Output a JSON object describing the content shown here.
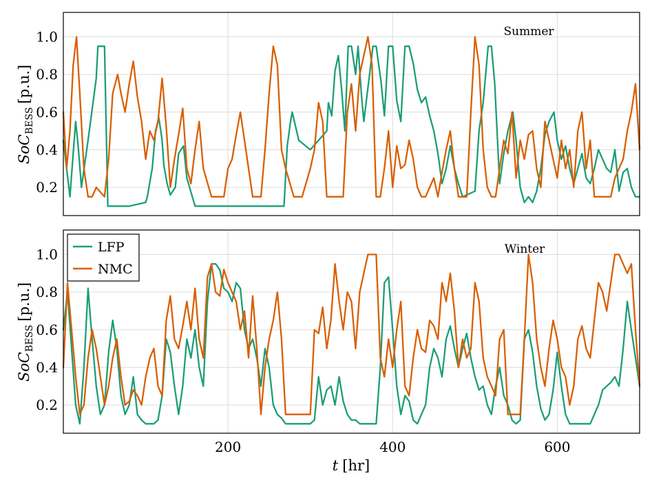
{
  "chart_data": [
    {
      "type": "line",
      "panel": "Summer",
      "ylabel_main": "SoC",
      "ylabel_sub": "BESS",
      "ylabel_unit": "[p.u.]",
      "xlim": [
        0,
        700
      ],
      "ylim": [
        0.05,
        1.13
      ],
      "yticks": [
        0.2,
        0.4,
        0.6,
        0.8,
        1.0
      ],
      "ytick_labels": [
        "0.2",
        "0.4",
        "0.6",
        "0.8",
        "1.0"
      ],
      "series": [
        {
          "name": "LFP",
          "x": [
            0,
            4,
            8,
            12,
            15,
            18,
            22,
            30,
            40,
            42,
            50,
            54,
            60,
            80,
            100,
            102,
            108,
            112,
            116,
            120,
            122,
            126,
            130,
            136,
            140,
            146,
            150,
            160,
            200,
            230,
            260,
            268,
            272,
            276,
            278,
            286,
            300,
            320,
            322,
            326,
            330,
            334,
            338,
            342,
            346,
            350,
            355,
            358,
            362,
            365,
            372,
            376,
            380,
            386,
            390,
            395,
            400,
            405,
            410,
            415,
            420,
            425,
            430,
            435,
            440,
            445,
            450,
            455,
            460,
            465,
            470,
            475,
            480,
            485,
            490,
            500,
            505,
            510,
            516,
            520,
            524,
            530,
            535,
            540,
            546,
            550,
            555,
            560,
            565,
            570,
            575,
            580,
            585,
            590,
            596,
            600,
            605,
            610,
            615,
            620,
            625,
            630,
            635,
            640,
            645,
            650,
            655,
            660,
            665,
            670,
            675,
            680,
            685,
            690,
            695,
            700
          ],
          "y": [
            0.45,
            0.3,
            0.15,
            0.38,
            0.55,
            0.42,
            0.2,
            0.45,
            0.78,
            0.95,
            0.95,
            0.1,
            0.1,
            0.1,
            0.12,
            0.15,
            0.3,
            0.5,
            0.57,
            0.45,
            0.32,
            0.22,
            0.16,
            0.2,
            0.38,
            0.42,
            0.25,
            0.1,
            0.1,
            0.1,
            0.1,
            0.1,
            0.42,
            0.55,
            0.6,
            0.45,
            0.4,
            0.5,
            0.65,
            0.58,
            0.82,
            0.9,
            0.72,
            0.5,
            0.95,
            0.95,
            0.8,
            0.95,
            0.7,
            0.55,
            0.8,
            0.95,
            0.95,
            0.76,
            0.58,
            0.95,
            0.95,
            0.66,
            0.55,
            0.95,
            0.95,
            0.86,
            0.72,
            0.65,
            0.68,
            0.58,
            0.5,
            0.38,
            0.22,
            0.3,
            0.42,
            0.3,
            0.22,
            0.15,
            0.16,
            0.18,
            0.5,
            0.65,
            0.95,
            0.95,
            0.75,
            0.22,
            0.38,
            0.5,
            0.6,
            0.45,
            0.2,
            0.12,
            0.15,
            0.12,
            0.18,
            0.3,
            0.48,
            0.55,
            0.6,
            0.45,
            0.35,
            0.42,
            0.3,
            0.22,
            0.3,
            0.38,
            0.25,
            0.22,
            0.3,
            0.4,
            0.35,
            0.3,
            0.28,
            0.4,
            0.18,
            0.28,
            0.3,
            0.2,
            0.15,
            0.15
          ]
        },
        {
          "name": "NMC",
          "x": [
            0,
            4,
            8,
            12,
            16,
            20,
            25,
            30,
            35,
            40,
            50,
            55,
            60,
            66,
            70,
            75,
            80,
            85,
            90,
            95,
            100,
            105,
            110,
            115,
            120,
            125,
            130,
            135,
            140,
            145,
            150,
            155,
            160,
            165,
            170,
            180,
            190,
            195,
            200,
            205,
            210,
            215,
            220,
            230,
            240,
            245,
            250,
            255,
            260,
            265,
            270,
            280,
            290,
            300,
            305,
            310,
            315,
            320,
            325,
            330,
            340,
            345,
            350,
            355,
            360,
            365,
            370,
            375,
            380,
            385,
            390,
            395,
            400,
            405,
            410,
            415,
            420,
            425,
            430,
            435,
            440,
            445,
            450,
            455,
            460,
            465,
            470,
            475,
            480,
            485,
            490,
            495,
            500,
            505,
            510,
            515,
            520,
            525,
            530,
            535,
            540,
            545,
            550,
            555,
            560,
            565,
            570,
            575,
            580,
            585,
            590,
            595,
            600,
            605,
            610,
            615,
            620,
            625,
            630,
            635,
            640,
            645,
            650,
            655,
            660,
            665,
            670,
            675,
            680,
            685,
            690,
            695,
            700
          ],
          "y": [
            0.6,
            0.3,
            0.5,
            0.85,
            1.0,
            0.7,
            0.3,
            0.15,
            0.15,
            0.2,
            0.15,
            0.35,
            0.7,
            0.8,
            0.7,
            0.6,
            0.75,
            0.87,
            0.68,
            0.55,
            0.35,
            0.5,
            0.45,
            0.55,
            0.78,
            0.52,
            0.2,
            0.35,
            0.48,
            0.62,
            0.3,
            0.22,
            0.4,
            0.55,
            0.3,
            0.15,
            0.15,
            0.15,
            0.3,
            0.35,
            0.48,
            0.6,
            0.45,
            0.15,
            0.15,
            0.4,
            0.7,
            0.95,
            0.85,
            0.4,
            0.3,
            0.15,
            0.15,
            0.3,
            0.4,
            0.65,
            0.55,
            0.15,
            0.15,
            0.15,
            0.15,
            0.6,
            0.75,
            0.5,
            0.8,
            0.9,
            1.0,
            0.85,
            0.15,
            0.15,
            0.3,
            0.5,
            0.2,
            0.42,
            0.3,
            0.32,
            0.45,
            0.35,
            0.2,
            0.15,
            0.15,
            0.2,
            0.25,
            0.15,
            0.28,
            0.4,
            0.5,
            0.3,
            0.15,
            0.15,
            0.15,
            0.6,
            1.0,
            0.85,
            0.4,
            0.2,
            0.15,
            0.15,
            0.3,
            0.45,
            0.38,
            0.6,
            0.25,
            0.45,
            0.35,
            0.48,
            0.5,
            0.3,
            0.2,
            0.55,
            0.45,
            0.35,
            0.25,
            0.45,
            0.3,
            0.4,
            0.2,
            0.5,
            0.6,
            0.3,
            0.45,
            0.15,
            0.15,
            0.15,
            0.15,
            0.15,
            0.25,
            0.3,
            0.35,
            0.5,
            0.6,
            0.75,
            0.4
          ]
        }
      ]
    },
    {
      "type": "line",
      "panel": "Winter",
      "xlabel_main": "t",
      "xlabel_unit": "[hr]",
      "ylabel_main": "SoC",
      "ylabel_sub": "BESS",
      "ylabel_unit": "[p.u.]",
      "xlim": [
        0,
        700
      ],
      "ylim": [
        0.05,
        1.13
      ],
      "xticks": [
        200,
        400,
        600
      ],
      "xtick_labels": [
        "200",
        "400",
        "600"
      ],
      "yticks": [
        0.2,
        0.4,
        0.6,
        0.8,
        1.0
      ],
      "ytick_labels": [
        "0.2",
        "0.4",
        "0.6",
        "0.8",
        "1.0"
      ],
      "legend": {
        "placement": "top-left",
        "entries": [
          "LFP",
          "NMC"
        ]
      },
      "series": [
        {
          "name": "LFP",
          "x": [
            0,
            5,
            10,
            15,
            20,
            25,
            30,
            35,
            40,
            45,
            50,
            55,
            60,
            65,
            70,
            75,
            80,
            85,
            90,
            95,
            100,
            105,
            110,
            115,
            120,
            125,
            130,
            135,
            140,
            145,
            150,
            155,
            160,
            165,
            170,
            175,
            180,
            185,
            190,
            195,
            200,
            205,
            210,
            215,
            220,
            225,
            230,
            235,
            240,
            245,
            250,
            255,
            260,
            265,
            270,
            280,
            290,
            300,
            305,
            310,
            315,
            320,
            325,
            330,
            335,
            340,
            345,
            350,
            355,
            360,
            365,
            370,
            375,
            380,
            385,
            390,
            395,
            400,
            405,
            410,
            415,
            420,
            425,
            430,
            435,
            440,
            445,
            450,
            455,
            460,
            465,
            470,
            475,
            480,
            485,
            490,
            495,
            500,
            505,
            510,
            515,
            520,
            525,
            530,
            535,
            540,
            545,
            550,
            555,
            560,
            565,
            570,
            575,
            580,
            585,
            590,
            595,
            600,
            605,
            610,
            615,
            620,
            625,
            630,
            635,
            640,
            645,
            650,
            655,
            660,
            665,
            670,
            675,
            680,
            685,
            690,
            695,
            700
          ],
          "y": [
            0.6,
            0.8,
            0.5,
            0.2,
            0.1,
            0.4,
            0.82,
            0.55,
            0.3,
            0.15,
            0.2,
            0.48,
            0.65,
            0.5,
            0.25,
            0.15,
            0.2,
            0.35,
            0.15,
            0.12,
            0.1,
            0.1,
            0.1,
            0.12,
            0.25,
            0.55,
            0.48,
            0.3,
            0.15,
            0.3,
            0.55,
            0.45,
            0.6,
            0.4,
            0.3,
            0.75,
            0.95,
            0.95,
            0.92,
            0.82,
            0.8,
            0.75,
            0.85,
            0.82,
            0.6,
            0.5,
            0.55,
            0.45,
            0.3,
            0.5,
            0.4,
            0.2,
            0.15,
            0.13,
            0.1,
            0.1,
            0.1,
            0.1,
            0.12,
            0.35,
            0.2,
            0.28,
            0.3,
            0.2,
            0.35,
            0.22,
            0.15,
            0.12,
            0.12,
            0.1,
            0.1,
            0.1,
            0.1,
            0.1,
            0.4,
            0.85,
            0.88,
            0.6,
            0.3,
            0.15,
            0.25,
            0.22,
            0.12,
            0.1,
            0.15,
            0.2,
            0.4,
            0.5,
            0.45,
            0.35,
            0.55,
            0.62,
            0.5,
            0.4,
            0.5,
            0.58,
            0.45,
            0.35,
            0.28,
            0.3,
            0.2,
            0.15,
            0.3,
            0.4,
            0.25,
            0.2,
            0.12,
            0.1,
            0.12,
            0.55,
            0.6,
            0.48,
            0.3,
            0.18,
            0.12,
            0.15,
            0.28,
            0.48,
            0.3,
            0.15,
            0.1,
            0.1,
            0.1,
            0.1,
            0.1,
            0.1,
            0.15,
            0.2,
            0.28,
            0.3,
            0.32,
            0.35,
            0.3,
            0.5,
            0.75,
            0.6,
            0.45,
            0.3
          ]
        },
        {
          "name": "NMC",
          "x": [
            0,
            5,
            10,
            15,
            20,
            25,
            30,
            35,
            40,
            45,
            50,
            55,
            60,
            65,
            70,
            75,
            80,
            85,
            90,
            95,
            100,
            105,
            110,
            115,
            120,
            125,
            130,
            135,
            140,
            145,
            150,
            155,
            160,
            165,
            170,
            175,
            180,
            185,
            190,
            195,
            200,
            205,
            210,
            215,
            220,
            225,
            230,
            235,
            240,
            245,
            250,
            255,
            260,
            265,
            270,
            280,
            290,
            300,
            305,
            310,
            315,
            320,
            325,
            330,
            335,
            340,
            345,
            350,
            355,
            360,
            365,
            370,
            375,
            380,
            385,
            390,
            395,
            400,
            405,
            410,
            415,
            420,
            425,
            430,
            435,
            440,
            445,
            450,
            455,
            460,
            465,
            470,
            475,
            480,
            485,
            490,
            495,
            500,
            505,
            510,
            515,
            520,
            525,
            530,
            535,
            540,
            545,
            550,
            555,
            560,
            565,
            570,
            575,
            580,
            585,
            590,
            595,
            600,
            605,
            610,
            615,
            620,
            625,
            630,
            635,
            640,
            645,
            650,
            655,
            660,
            665,
            670,
            675,
            680,
            685,
            690,
            695,
            700
          ],
          "y": [
            0.4,
            0.85,
            0.6,
            0.35,
            0.15,
            0.2,
            0.45,
            0.6,
            0.5,
            0.35,
            0.2,
            0.3,
            0.45,
            0.55,
            0.35,
            0.2,
            0.22,
            0.28,
            0.25,
            0.2,
            0.35,
            0.45,
            0.5,
            0.3,
            0.25,
            0.65,
            0.78,
            0.55,
            0.5,
            0.62,
            0.75,
            0.6,
            0.82,
            0.55,
            0.45,
            0.88,
            0.95,
            0.8,
            0.78,
            0.92,
            0.85,
            0.8,
            0.75,
            0.6,
            0.7,
            0.45,
            0.78,
            0.5,
            0.15,
            0.4,
            0.55,
            0.65,
            0.8,
            0.55,
            0.15,
            0.15,
            0.15,
            0.15,
            0.6,
            0.58,
            0.72,
            0.5,
            0.65,
            0.95,
            0.75,
            0.6,
            0.8,
            0.75,
            0.5,
            0.8,
            0.9,
            1.0,
            1.0,
            1.0,
            0.45,
            0.35,
            0.55,
            0.4,
            0.6,
            0.75,
            0.3,
            0.25,
            0.45,
            0.6,
            0.5,
            0.48,
            0.65,
            0.62,
            0.55,
            0.85,
            0.75,
            0.9,
            0.7,
            0.4,
            0.55,
            0.45,
            0.5,
            0.85,
            0.75,
            0.45,
            0.35,
            0.3,
            0.25,
            0.55,
            0.6,
            0.15,
            0.15,
            0.15,
            0.15,
            0.55,
            1.0,
            0.85,
            0.55,
            0.4,
            0.3,
            0.5,
            0.65,
            0.55,
            0.4,
            0.35,
            0.2,
            0.3,
            0.55,
            0.62,
            0.5,
            0.45,
            0.65,
            0.85,
            0.8,
            0.7,
            0.85,
            1.0,
            1.0,
            0.95,
            0.9,
            0.95,
            0.6,
            0.3
          ]
        }
      ]
    }
  ],
  "colors": {
    "LFP": "#1b9e77",
    "NMC": "#d95f02"
  }
}
